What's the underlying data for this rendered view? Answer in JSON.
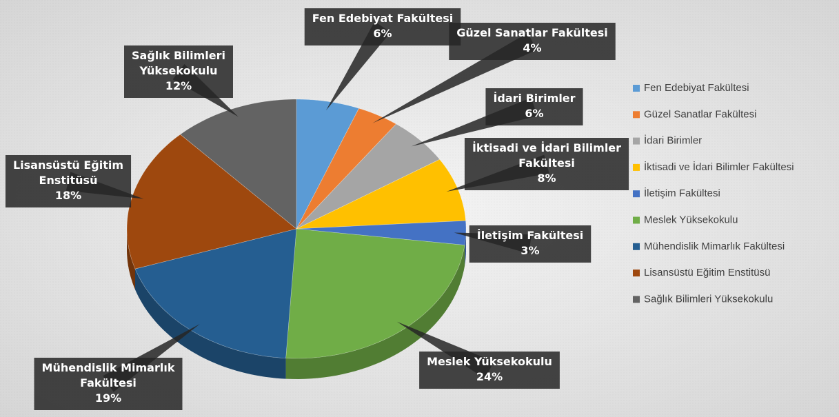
{
  "chart_data": {
    "type": "pie3d",
    "categories": [
      "Fen Edebiyat Fakültesi",
      "Güzel Sanatlar Fakültesi",
      "İdari Birimler",
      "İktisadi ve İdari Bilimler Fakültesi",
      "İletişim Fakültesi",
      "Meslek Yüksekokulu",
      "Mühendislik Mimarlık Fakültesi",
      "Lisansüstü Eğitim Enstitüsü",
      "Sağlık Bilimleri Yüksekokulu"
    ],
    "values": [
      6,
      4,
      6,
      8,
      3,
      24,
      19,
      18,
      12
    ],
    "value_labels": [
      "6%",
      "4%",
      "6%",
      "8%",
      "3%",
      "24%",
      "19%",
      "18%",
      "12%"
    ],
    "colors": [
      "#5b9bd5",
      "#ed7d31",
      "#a5a5a5",
      "#ffc000",
      "#4472c4",
      "#70ad47",
      "#255e91",
      "#9e480e",
      "#636363"
    ],
    "legend": "right"
  }
}
